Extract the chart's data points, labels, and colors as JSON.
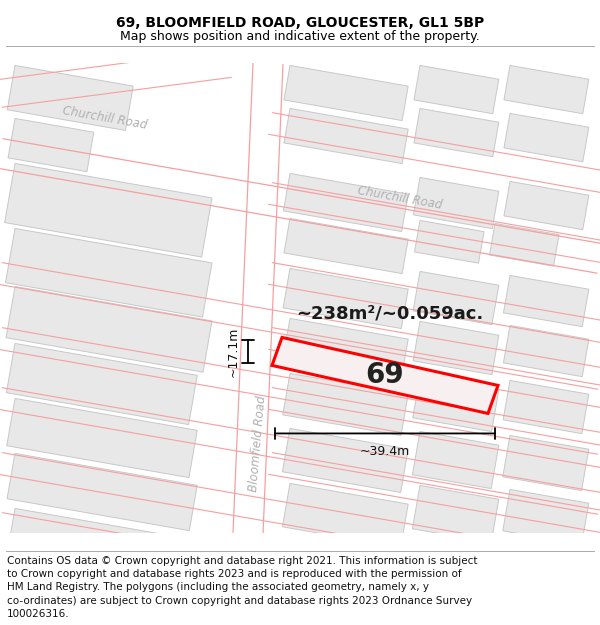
{
  "title_line1": "69, BLOOMFIELD ROAD, GLOUCESTER, GL1 5BP",
  "title_line2": "Map shows position and indicative extent of the property.",
  "footer_text": "Contains OS data © Crown copyright and database right 2021. This information is subject to Crown copyright and database rights 2023 and is reproduced with the permission of HM Land Registry. The polygons (including the associated geometry, namely x, y co-ordinates) are subject to Crown copyright and database rights 2023 Ordnance Survey 100026316.",
  "background_color": "#ffffff",
  "map_bg_color": "#ffffff",
  "street_line_color": "#f5a0a0",
  "building_fill_color": "#e8e8e8",
  "building_edge_color": "#c8c8c8",
  "property_fill_color": "#f8f0f0",
  "property_edge_color": "#ff0000",
  "road_label_color": "#b0b0b0",
  "title_fontsize": 10,
  "subtitle_fontsize": 9,
  "footer_fontsize": 7.5,
  "area_text": "~238m²/~0.059ac.",
  "label_69": "69",
  "dim_width": "~39.4m",
  "dim_height": "~17.1m"
}
